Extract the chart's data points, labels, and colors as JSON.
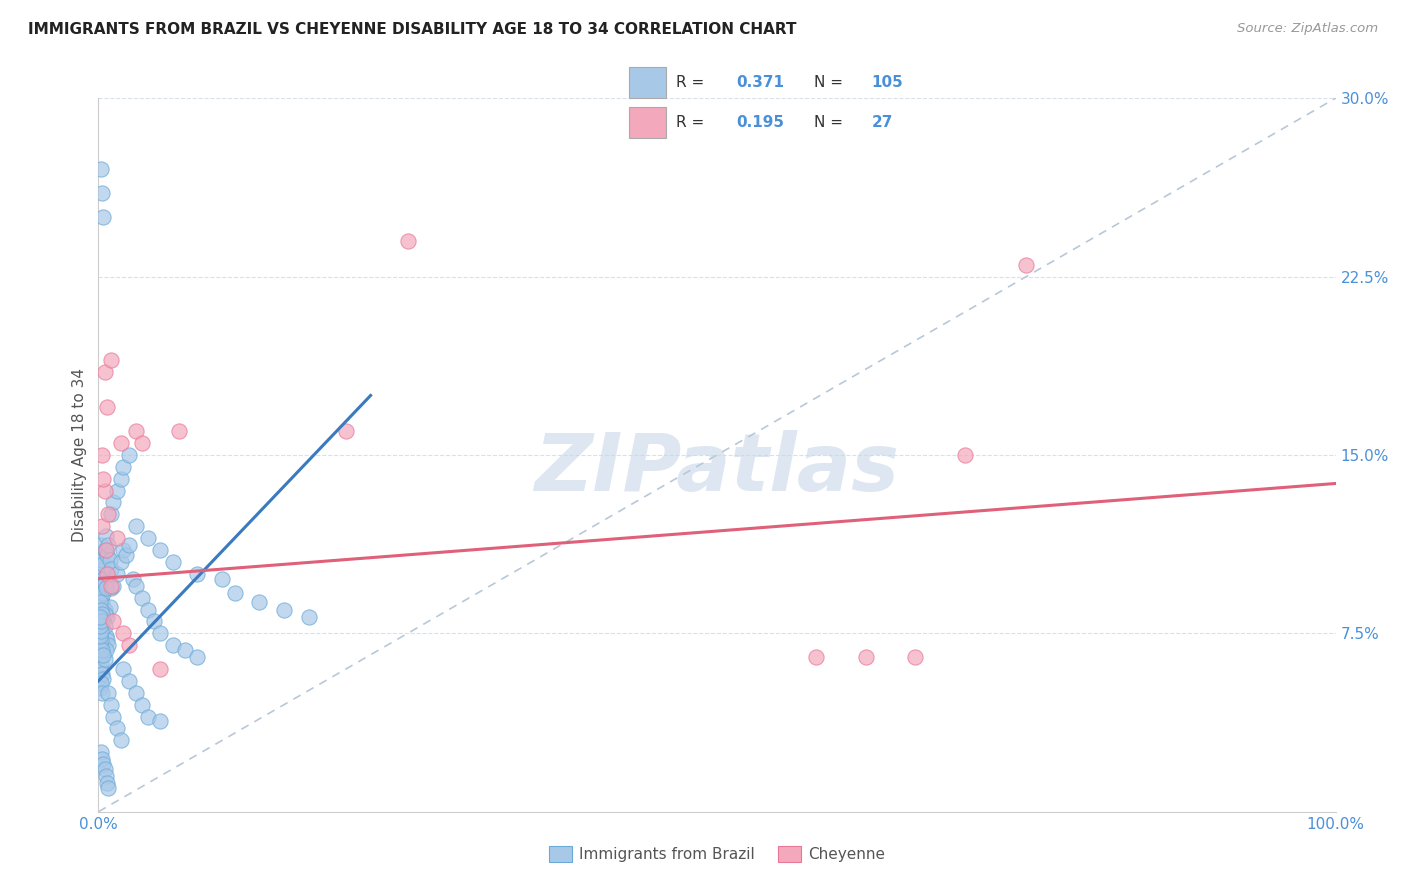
{
  "title": "IMMIGRANTS FROM BRAZIL VS CHEYENNE DISABILITY AGE 18 TO 34 CORRELATION CHART",
  "source": "Source: ZipAtlas.com",
  "ylabel": "Disability Age 18 to 34",
  "xlim": [
    0.0,
    1.0
  ],
  "ylim": [
    0.0,
    0.3
  ],
  "xticks": [
    0.0,
    0.25,
    0.5,
    0.75,
    1.0
  ],
  "xticklabels": [
    "0.0%",
    "",
    "",
    "",
    "100.0%"
  ],
  "yticks": [
    0.075,
    0.15,
    0.225,
    0.3
  ],
  "yticklabels": [
    "7.5%",
    "15.0%",
    "22.5%",
    "30.0%"
  ],
  "brazil_R": "0.371",
  "brazil_N": "105",
  "cheyenne_R": "0.195",
  "cheyenne_N": "27",
  "brazil_color": "#a8c8e8",
  "cheyenne_color": "#f4a8bc",
  "brazil_edge_color": "#6aaad8",
  "cheyenne_edge_color": "#e87898",
  "brazil_line_color": "#3a7abf",
  "cheyenne_line_color": "#e0607a",
  "diagonal_color": "#b8c8d8",
  "tick_color": "#4a90d9",
  "legend_text_color": "#333333",
  "legend_value_color": "#4a90d9",
  "watermark_text": "ZIPatlas",
  "watermark_color": "#c8d8e8",
  "legend_label_brazil": "Immigrants from Brazil",
  "legend_label_cheyenne": "Cheyenne",
  "brazil_line_x": [
    0.0,
    0.22
  ],
  "brazil_line_y": [
    0.055,
    0.175
  ],
  "cheyenne_line_x": [
    0.0,
    1.0
  ],
  "cheyenne_line_y": [
    0.098,
    0.138
  ],
  "brazil_scatter_x": [
    0.002,
    0.003,
    0.004,
    0.005,
    0.006,
    0.007,
    0.008,
    0.009,
    0.01,
    0.002,
    0.003,
    0.004,
    0.005,
    0.006,
    0.007,
    0.008,
    0.002,
    0.003,
    0.004,
    0.005,
    0.006,
    0.001,
    0.002,
    0.003,
    0.004,
    0.005,
    0.006,
    0.007,
    0.008,
    0.009,
    0.01,
    0.001,
    0.002,
    0.003,
    0.004,
    0.005,
    0.001,
    0.002,
    0.003,
    0.004,
    0.005,
    0.006,
    0.001,
    0.002,
    0.003,
    0.001,
    0.002,
    0.003,
    0.004,
    0.001,
    0.002,
    0.001,
    0.002,
    0.001,
    0.012,
    0.015,
    0.018,
    0.02,
    0.022,
    0.025,
    0.028,
    0.03,
    0.035,
    0.04,
    0.045,
    0.05,
    0.06,
    0.07,
    0.08,
    0.01,
    0.012,
    0.015,
    0.018,
    0.02,
    0.025,
    0.03,
    0.04,
    0.05,
    0.06,
    0.08,
    0.1,
    0.11,
    0.13,
    0.15,
    0.17,
    0.008,
    0.01,
    0.012,
    0.015,
    0.018,
    0.002,
    0.003,
    0.004,
    0.005,
    0.006,
    0.007,
    0.008,
    0.02,
    0.025,
    0.03,
    0.035,
    0.04,
    0.05,
    0.002,
    0.003,
    0.004
  ],
  "brazil_scatter_y": [
    0.09,
    0.088,
    0.092,
    0.085,
    0.095,
    0.082,
    0.098,
    0.086,
    0.094,
    0.076,
    0.078,
    0.08,
    0.083,
    0.074,
    0.072,
    0.07,
    0.1,
    0.102,
    0.098,
    0.096,
    0.094,
    0.108,
    0.112,
    0.106,
    0.104,
    0.11,
    0.116,
    0.108,
    0.112,
    0.106,
    0.102,
    0.088,
    0.085,
    0.083,
    0.08,
    0.078,
    0.06,
    0.062,
    0.058,
    0.056,
    0.064,
    0.068,
    0.052,
    0.054,
    0.05,
    0.07,
    0.072,
    0.068,
    0.066,
    0.074,
    0.076,
    0.078,
    0.08,
    0.082,
    0.095,
    0.1,
    0.105,
    0.11,
    0.108,
    0.112,
    0.098,
    0.095,
    0.09,
    0.085,
    0.08,
    0.075,
    0.07,
    0.068,
    0.065,
    0.125,
    0.13,
    0.135,
    0.14,
    0.145,
    0.15,
    0.12,
    0.115,
    0.11,
    0.105,
    0.1,
    0.098,
    0.092,
    0.088,
    0.085,
    0.082,
    0.05,
    0.045,
    0.04,
    0.035,
    0.03,
    0.025,
    0.022,
    0.02,
    0.018,
    0.015,
    0.012,
    0.01,
    0.06,
    0.055,
    0.05,
    0.045,
    0.04,
    0.038,
    0.27,
    0.26,
    0.25
  ],
  "cheyenne_scatter_x": [
    0.003,
    0.005,
    0.007,
    0.01,
    0.004,
    0.006,
    0.008,
    0.012,
    0.015,
    0.018,
    0.02,
    0.025,
    0.03,
    0.035,
    0.05,
    0.065,
    0.2,
    0.25,
    0.58,
    0.62,
    0.66,
    0.7,
    0.75,
    0.003,
    0.005,
    0.007,
    0.01
  ],
  "cheyenne_scatter_y": [
    0.12,
    0.135,
    0.1,
    0.095,
    0.14,
    0.11,
    0.125,
    0.08,
    0.115,
    0.155,
    0.075,
    0.07,
    0.16,
    0.155,
    0.06,
    0.16,
    0.16,
    0.24,
    0.065,
    0.065,
    0.065,
    0.15,
    0.23,
    0.15,
    0.185,
    0.17,
    0.19
  ]
}
